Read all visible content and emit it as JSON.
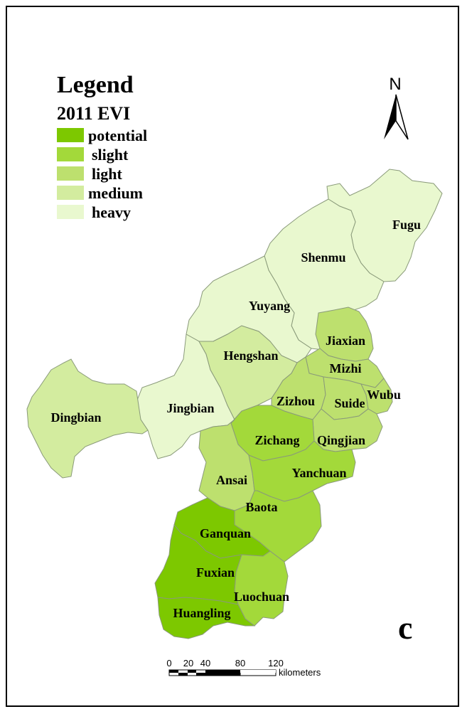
{
  "legend": {
    "title": "Legend",
    "subtitle": "2011 EVI",
    "items": [
      {
        "label": "potential",
        "color": "#7dc800"
      },
      {
        "label": "slight",
        "color": "#a3d93a"
      },
      {
        "label": "light",
        "color": "#bde06e"
      },
      {
        "label": "medium",
        "color": "#d3ec9f"
      },
      {
        "label": "heavy",
        "color": "#e9f8cf"
      }
    ]
  },
  "north_arrow": {
    "label": "N"
  },
  "panel_letter": "c",
  "scale_bar": {
    "ticks": [
      "0",
      "20",
      "40",
      "80",
      "120"
    ],
    "unit": "kilometers"
  },
  "regions": [
    {
      "name": "Fugu",
      "class": "heavy"
    },
    {
      "name": "Shenmu",
      "class": "heavy"
    },
    {
      "name": "Yuyang",
      "class": "heavy"
    },
    {
      "name": "Jingbian",
      "class": "heavy"
    },
    {
      "name": "Hengshan",
      "class": "medium"
    },
    {
      "name": "Dingbian",
      "class": "medium"
    },
    {
      "name": "Ansai",
      "class": "light"
    },
    {
      "name": "Jiaxian",
      "class": "light"
    },
    {
      "name": "Mizhi",
      "class": "light"
    },
    {
      "name": "Zizhou",
      "class": "light"
    },
    {
      "name": "Suide",
      "class": "light"
    },
    {
      "name": "Wubu",
      "class": "light"
    },
    {
      "name": "Qingjian",
      "class": "light"
    },
    {
      "name": "Zichang",
      "class": "slight"
    },
    {
      "name": "Yanchuan",
      "class": "slight"
    },
    {
      "name": "Baota",
      "class": "slight"
    },
    {
      "name": "Luochuan",
      "class": "slight"
    },
    {
      "name": "Ganquan",
      "class": "potential"
    },
    {
      "name": "Fuxian",
      "class": "potential"
    },
    {
      "name": "Huangling",
      "class": "potential"
    }
  ]
}
